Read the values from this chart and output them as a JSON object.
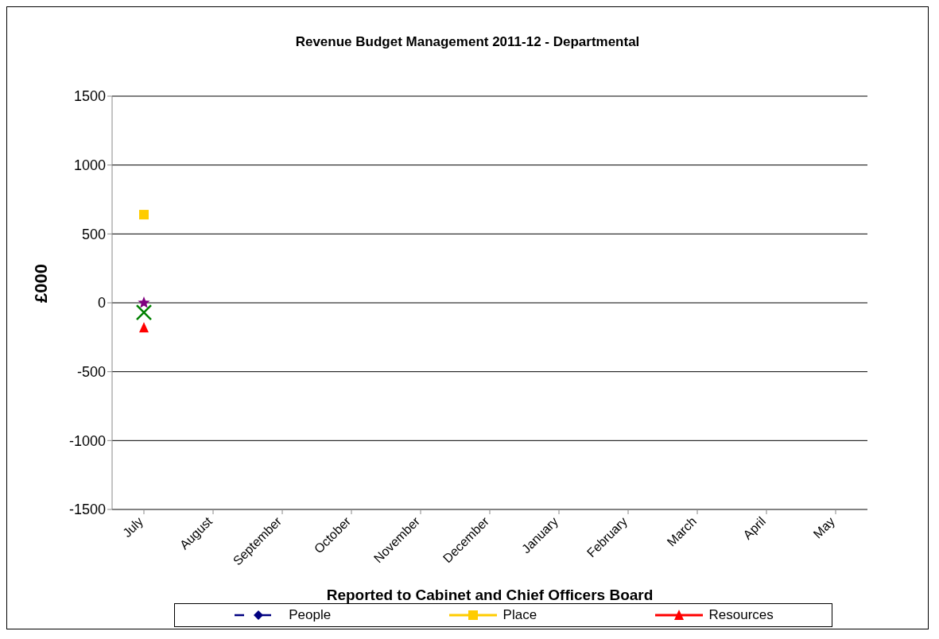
{
  "chart_data": {
    "type": "line",
    "title": "Revenue Budget Management 2011-12 - Departmental",
    "xlabel": "Reported to Cabinet and Chief Officers Board",
    "ylabel": "£000",
    "categories": [
      "July",
      "August",
      "September",
      "October",
      "November",
      "December",
      "January",
      "February",
      "March",
      "April",
      "May"
    ],
    "series": [
      {
        "name": "People",
        "color": "#000080",
        "marker": "diamond",
        "line_style": "dashed",
        "values": [
          null,
          null,
          null,
          null,
          null,
          null,
          null,
          null,
          null,
          null,
          null
        ]
      },
      {
        "name": "Place",
        "color": "#ffcc00",
        "marker": "square",
        "line_style": "solid",
        "values": [
          640,
          null,
          null,
          null,
          null,
          null,
          null,
          null,
          null,
          null,
          null
        ]
      },
      {
        "name": "Resources",
        "color": "#ff0000",
        "marker": "triangle",
        "line_style": "solid",
        "values": [
          -180,
          null,
          null,
          null,
          null,
          null,
          null,
          null,
          null,
          null,
          null
        ]
      },
      {
        "color": "#800080",
        "marker": "star",
        "values": [
          0,
          null,
          null,
          null,
          null,
          null,
          null,
          null,
          null,
          null,
          null
        ]
      },
      {
        "color": "#008000",
        "marker": "cross",
        "values": [
          -70,
          null,
          null,
          null,
          null,
          null,
          null,
          null,
          null,
          null,
          null
        ]
      }
    ],
    "ylim": [
      -1500,
      1500
    ],
    "yticks": [
      -1500,
      -1000,
      -500,
      0,
      500,
      1000,
      1500
    ],
    "grid": "y",
    "legend": "bottom"
  }
}
